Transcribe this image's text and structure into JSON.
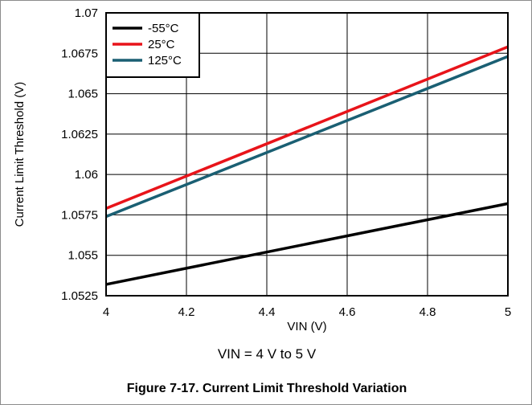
{
  "chart_data": {
    "type": "line",
    "title": "",
    "xlabel": "VIN (V)",
    "ylabel": "Current Limit Threshold (V)",
    "xlim": [
      4,
      5
    ],
    "ylim": [
      1.0525,
      1.07
    ],
    "x_ticks": [
      "4",
      "4.2",
      "4.4",
      "4.6",
      "4.8",
      "5"
    ],
    "y_ticks": [
      "1.0525",
      "1.055",
      "1.0575",
      "1.06",
      "1.0625",
      "1.065",
      "1.0675",
      "1.07"
    ],
    "grid": true,
    "legend_position": "top-left",
    "series": [
      {
        "name": "-55°C",
        "color": "#000000",
        "x": [
          4,
          5
        ],
        "y": [
          1.0532,
          1.0582
        ]
      },
      {
        "name": "25°C",
        "color": "#e8141a",
        "x": [
          4,
          5
        ],
        "y": [
          1.0579,
          1.0679
        ]
      },
      {
        "name": "125°C",
        "color": "#1a5f73",
        "x": [
          4,
          5
        ],
        "y": [
          1.0574,
          1.0673
        ]
      }
    ]
  },
  "condition_text": "VIN = 4 V to 5 V",
  "caption": "Figure 7-17. Current Limit Threshold Variation"
}
